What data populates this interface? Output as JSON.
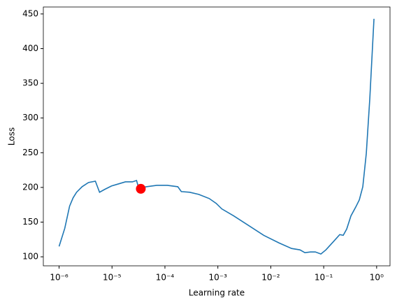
{
  "chart_data": {
    "type": "line",
    "xlabel": "Learning rate",
    "ylabel": "Loss",
    "xscale": "log",
    "x": [
      1e-06,
      1.28e-06,
      1.58e-06,
      1.84e-06,
      2.14e-06,
      2.72e-06,
      3.58e-06,
      4.85e-06,
      5.82e-06,
      7.21e-06,
      9.76e-06,
      1.32e-05,
      1.79e-05,
      2.43e-05,
      2.91e-05,
      3.19e-05,
      4.46e-05,
      7.03e-05,
      0.000111,
      0.000175,
      0.000204,
      0.000293,
      0.000435,
      0.000686,
      0.000929,
      0.00119,
      0.00199,
      0.00365,
      0.00733,
      0.0143,
      0.0247,
      0.0356,
      0.0441,
      0.0561,
      0.0695,
      0.0885,
      0.11,
      0.153,
      0.201,
      0.234,
      0.272,
      0.327,
      0.405,
      0.471,
      0.548,
      0.638,
      0.743,
      0.891
    ],
    "series": [
      {
        "name": "Loss",
        "color": "#1f77b4",
        "values": [
          115,
          141,
          173,
          185,
          193,
          201,
          207,
          209,
          193,
          197,
          202,
          205,
          208,
          208,
          210,
          199,
          201,
          203,
          203,
          201,
          194,
          193,
          190,
          184,
          177,
          169,
          159,
          146,
          131,
          120,
          112,
          110,
          106,
          107,
          107,
          104,
          110,
          122,
          132,
          131,
          140,
          159,
          172,
          182,
          201,
          249,
          328,
          443
        ]
      }
    ],
    "marker": {
      "x": 3.5e-05,
      "y": 198,
      "color": "#ff0000"
    },
    "xlim": [
      5.04e-07,
      1.79
    ],
    "ylim": [
      87,
      460
    ],
    "xticks": [
      {
        "value": 1e-06,
        "label": "10⁻⁶"
      },
      {
        "value": 1e-05,
        "label": "10⁻⁵"
      },
      {
        "value": 0.0001,
        "label": "10⁻⁴"
      },
      {
        "value": 0.001,
        "label": "10⁻³"
      },
      {
        "value": 0.01,
        "label": "10⁻²"
      },
      {
        "value": 0.1,
        "label": "10⁻¹"
      },
      {
        "value": 1,
        "label": "10⁰"
      }
    ],
    "yticks": [
      100,
      150,
      200,
      250,
      300,
      350,
      400,
      450
    ]
  }
}
